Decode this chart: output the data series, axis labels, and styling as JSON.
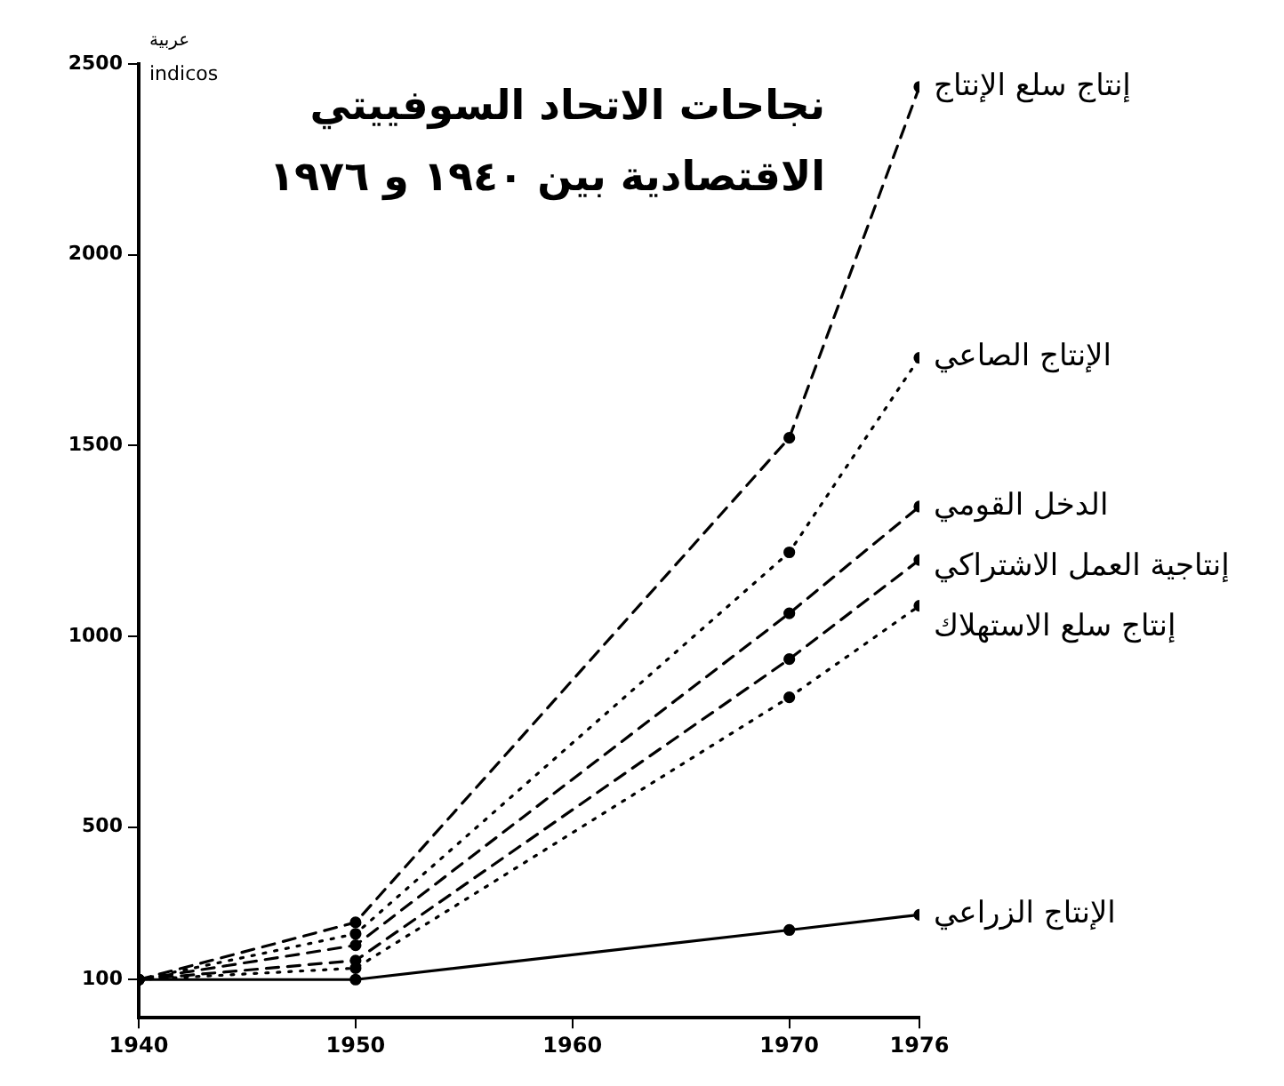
{
  "chart_data": {
    "type": "line",
    "title": "نجاحات الاتحاد السوفييتي الاقتصادية بين ١٩٤٠ و ١٩٧٦",
    "ylabel": "indicos",
    "annotations": [
      "عربية"
    ],
    "x": [
      1940,
      1950,
      1970,
      1976
    ],
    "series": [
      {
        "name": "إنتاج سلع الإنتاج",
        "color": "#000000",
        "line_style": "dashed",
        "values": [
          100,
          250,
          1520,
          2440
        ]
      },
      {
        "name": "الإنتاج الصاعي",
        "color": "#000000",
        "line_style": "dotted",
        "values": [
          100,
          220,
          1220,
          1730
        ]
      },
      {
        "name": "الدخل القومي",
        "color": "#000000",
        "line_style": "dashed",
        "values": [
          100,
          190,
          1060,
          1340
        ]
      },
      {
        "name": "إنتاجية العمل الاشتراكي",
        "color": "#000000",
        "line_style": "dashed",
        "values": [
          100,
          150,
          940,
          1200
        ]
      },
      {
        "name": "إنتاج سلع الاستهلاك",
        "color": "#000000",
        "line_style": "dotted",
        "values": [
          100,
          130,
          840,
          1080
        ]
      },
      {
        "name": "الإنتاج الزراعي",
        "color": "#000000",
        "line_style": "solid",
        "values": [
          100,
          100,
          230,
          270
        ]
      }
    ],
    "xlim": [
      1940,
      1976
    ],
    "xticks": [
      1940,
      1950,
      1960,
      1970,
      1976
    ],
    "ylim": [
      0,
      2500
    ],
    "yticks": [
      100,
      500,
      1000,
      1500,
      2000,
      2500
    ],
    "grid": false,
    "legend": false,
    "marker": "circle"
  }
}
